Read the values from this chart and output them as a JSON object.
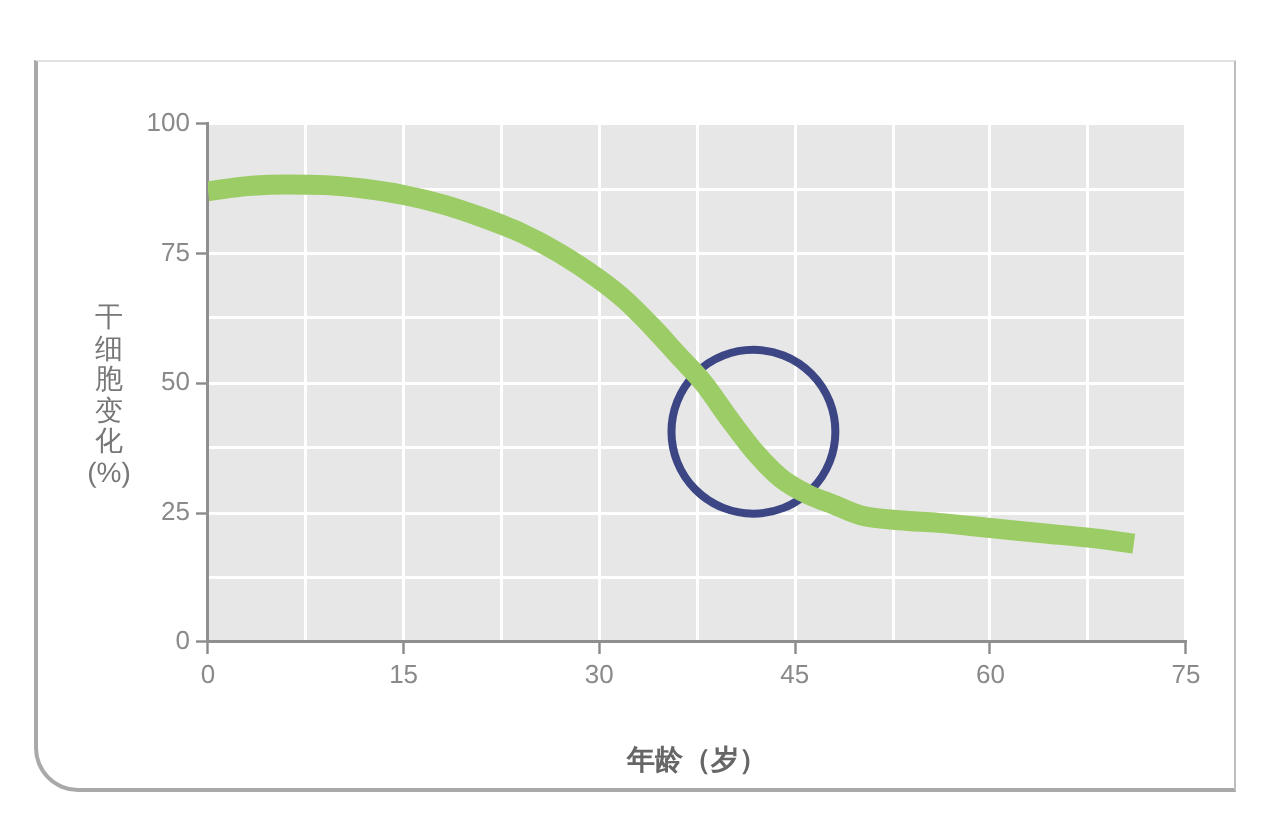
{
  "chart_data": {
    "type": "line",
    "xlabel": "年龄（岁）",
    "ylabel": "干细胞变化 (%)",
    "x": [
      0,
      3,
      6,
      9,
      12,
      15,
      18,
      21,
      24,
      27,
      30,
      32,
      34,
      36,
      38,
      40,
      42,
      44,
      46,
      48,
      50,
      53,
      56,
      60,
      64,
      68,
      71
    ],
    "series": [
      {
        "color": "#9ccc65",
        "values": [
          87,
          88,
          88.3,
          88.2,
          87.5,
          86.3,
          84.5,
          82,
          79,
          75,
          70,
          66,
          61,
          55.5,
          50,
          43,
          36.5,
          31.5,
          28.5,
          26.5,
          24.5,
          23.5,
          23,
          22,
          21,
          20,
          19
        ]
      }
    ],
    "xlim": [
      0,
      75
    ],
    "ylim": [
      0,
      100
    ],
    "xticks": [
      0,
      {
        "value": 7.5,
        "label": null
      },
      15,
      {
        "value": 22.5,
        "label": null
      },
      30,
      {
        "value": 37.5,
        "label": null
      },
      45,
      {
        "value": 52.5,
        "label": null
      },
      60,
      {
        "value": 67.5,
        "label": null
      },
      75
    ],
    "yticks": [
      0,
      {
        "value": 12.5,
        "label": null
      },
      25,
      {
        "value": 37.5,
        "label": null
      },
      50,
      {
        "value": 62.5,
        "label": null
      },
      75,
      {
        "value": 87.5,
        "label": null
      },
      100
    ],
    "grid": true,
    "marker": "none",
    "line_style": "solid"
  }
}
